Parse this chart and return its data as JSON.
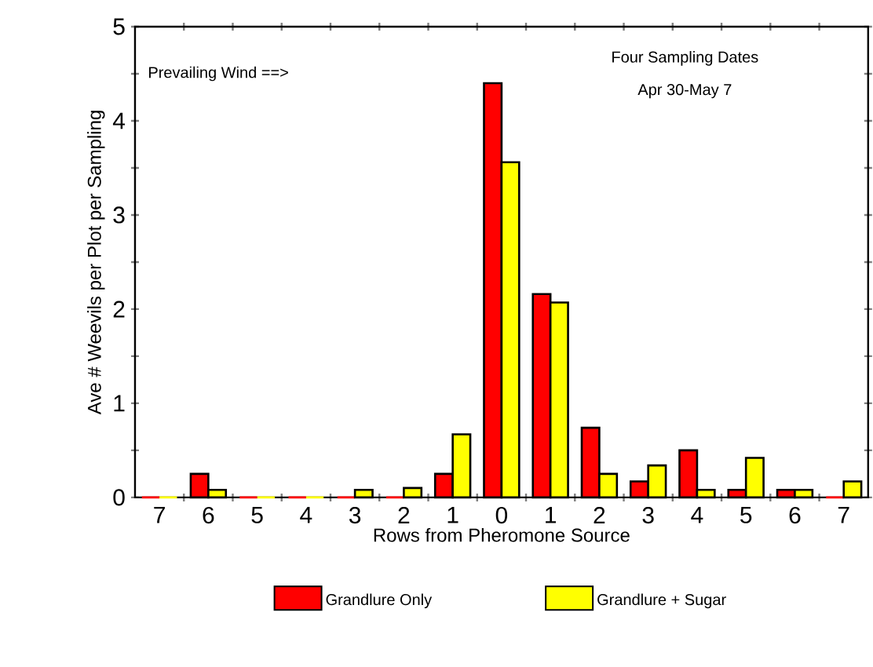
{
  "chart_data": {
    "type": "bar",
    "xlabel": "Rows from Pheromone Source",
    "ylabel": "Ave # Weevils per Plot per Sampling",
    "annotations": [
      "Prevailing Wind ==>",
      "Four Sampling Dates",
      "Apr 30-May 7"
    ],
    "categories": [
      "7",
      "6",
      "5",
      "4",
      "3",
      "2",
      "1",
      "0",
      "1",
      "2",
      "3",
      "4",
      "5",
      "6",
      "7"
    ],
    "series": [
      {
        "name": "Grandlure Only",
        "color": "#ff0000",
        "values": [
          0,
          0.25,
          0,
          0,
          0,
          0,
          0.25,
          4.4,
          2.16,
          0.74,
          0.17,
          0.5,
          0.08,
          0.08,
          0
        ]
      },
      {
        "name": "Grandlure + Sugar",
        "color": "#ffff00",
        "values": [
          0,
          0.08,
          0,
          0,
          0.08,
          0.1,
          0.67,
          3.56,
          2.07,
          0.25,
          0.34,
          0.08,
          0.42,
          0.08,
          0.17
        ]
      }
    ],
    "ylim": [
      0,
      5
    ],
    "yticks": [
      0,
      1,
      2,
      3,
      4,
      5
    ],
    "grid": false,
    "legend": "bottom"
  }
}
